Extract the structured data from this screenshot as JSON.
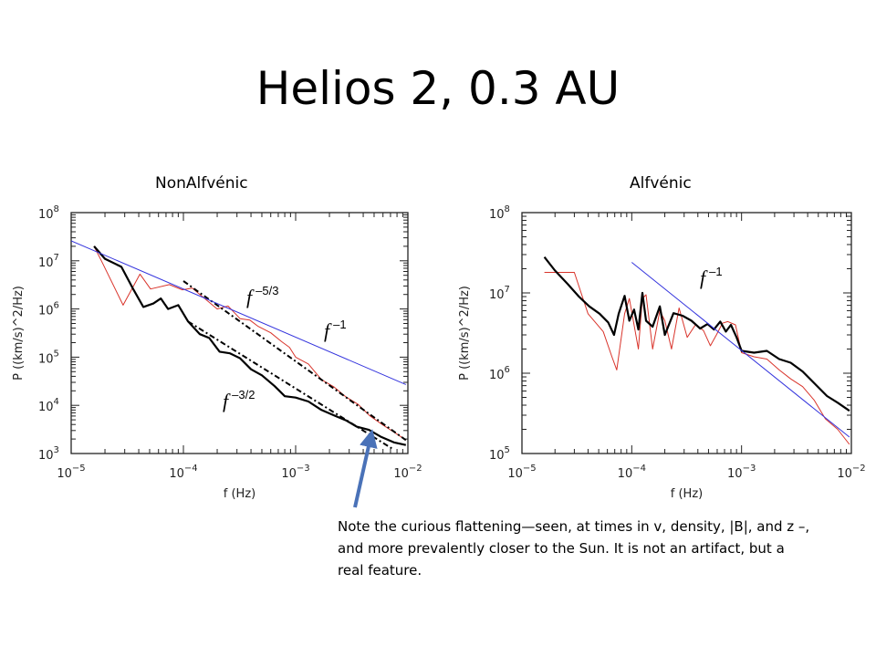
{
  "slide": {
    "title": "Helios 2, 0.3 AU",
    "note": "Note the curious flattening—seen, at times in v, density, |B|, and z –, and more prevalently closer to the Sun.  It is not an artifact, but a real feature.",
    "arrow_color": "#4a72b8"
  },
  "chart_data": [
    {
      "type": "line",
      "title": "NonAlfvénic",
      "xlabel": "f (Hz)",
      "ylabel": "P ((km/s)^2/Hz)",
      "xscale": "log",
      "yscale": "log",
      "xlim": [
        1e-05,
        0.01
      ],
      "ylim": [
        1000.0,
        100000000.0
      ],
      "xticks": [
        {
          "v": 1e-05,
          "base": "10",
          "exp": "−5"
        },
        {
          "v": 0.0001,
          "base": "10",
          "exp": "−4"
        },
        {
          "v": 0.001,
          "base": "10",
          "exp": "−3"
        },
        {
          "v": 0.01,
          "base": "10",
          "exp": "−2"
        }
      ],
      "yticks": [
        {
          "v": 1000.0,
          "base": "10",
          "exp": "3"
        },
        {
          "v": 10000.0,
          "base": "10",
          "exp": "4"
        },
        {
          "v": 100000.0,
          "base": "10",
          "exp": "5"
        },
        {
          "v": 1000000.0,
          "base": "10",
          "exp": "6"
        },
        {
          "v": 10000000.0,
          "base": "10",
          "exp": "7"
        },
        {
          "v": 100000000.0,
          "base": "10",
          "exp": "8"
        }
      ],
      "series": [
        {
          "color": "#d9342b",
          "width": 1,
          "dash": "",
          "x": [
            1.6e-05,
            1.9e-05,
            2.9e-05,
            4.1e-05,
            5.1e-05,
            7.5e-05,
            9.8e-05,
            0.00012,
            0.00016,
            0.0002,
            0.00025,
            0.00032,
            0.00039,
            0.00046,
            0.0006,
            0.00075,
            0.00088,
            0.001,
            0.0013,
            0.0017,
            0.0022,
            0.0028,
            0.0036,
            0.0046,
            0.006,
            0.0075,
            0.0096
          ],
          "y": [
            20000000.0,
            9000000.0,
            1200000.0,
            5300000.0,
            2600000.0,
            3200000.0,
            2500000.0,
            2700000.0,
            1550000.0,
            1000000.0,
            1150000.0,
            630000.0,
            590000.0,
            440000.0,
            320000.0,
            210000.0,
            160000.0,
            100000.0,
            72000.0,
            34000.0,
            24000.0,
            15000.0,
            10500.0,
            6000.0,
            3900.0,
            2800.0,
            1900.0
          ]
        },
        {
          "color": "#000000",
          "width": 2.2,
          "dash": "",
          "x": [
            1.6e-05,
            2e-05,
            2.8e-05,
            3.6e-05,
            4.4e-05,
            5.4e-05,
            6.3e-05,
            7.3e-05,
            9e-05,
            0.00011,
            0.00014,
            0.00017,
            0.00021,
            0.00026,
            0.00032,
            0.0004,
            0.0005,
            0.00065,
            0.0008,
            0.001,
            0.0013,
            0.0017,
            0.0022,
            0.0028,
            0.0035,
            0.0045,
            0.0058,
            0.0075,
            0.0096
          ],
          "y": [
            20000000.0,
            11000000.0,
            7500000.0,
            2500000.0,
            1100000.0,
            1300000.0,
            1650000.0,
            1000000.0,
            1200000.0,
            550000.0,
            300000.0,
            250000.0,
            130000.0,
            120000.0,
            95000.0,
            56000.0,
            42000.0,
            25000.0,
            15500.0,
            14500.0,
            12000.0,
            8000.0,
            6200.0,
            4900.0,
            3600.0,
            3100.0,
            2200.0,
            1700.0,
            1500.0
          ]
        },
        {
          "color": "#000000",
          "width": 2,
          "dash": "6 3 2 3",
          "x": [
            0.0001,
            0.0096
          ],
          "y": [
            3800000.0,
            1900.0
          ]
        },
        {
          "color": "#000000",
          "width": 2,
          "dash": "6 3 2 3",
          "x": [
            0.00011,
            0.0075
          ],
          "y": [
            550000.0,
            1200.0
          ]
        },
        {
          "color": "#3333dd",
          "width": 1,
          "dash": "",
          "x": [
            1e-05,
            0.0096
          ],
          "y": [
            26000000.0,
            27000.0
          ]
        }
      ],
      "annotations": [
        {
          "base": "f",
          "exp": "–5/3"
        },
        {
          "base": "f",
          "exp": "–1"
        },
        {
          "base": "f",
          "exp": "–3/2"
        }
      ]
    },
    {
      "type": "line",
      "title": "Alfvénic",
      "xlabel": "f (Hz)",
      "ylabel": "P ((km/s)^2/Hz)",
      "xscale": "log",
      "yscale": "log",
      "xlim": [
        1e-05,
        0.01
      ],
      "ylim": [
        100000.0,
        100000000.0
      ],
      "xticks": [
        {
          "v": 1e-05,
          "base": "10",
          "exp": "−5"
        },
        {
          "v": 0.0001,
          "base": "10",
          "exp": "−4"
        },
        {
          "v": 0.001,
          "base": "10",
          "exp": "−3"
        },
        {
          "v": 0.01,
          "base": "10",
          "exp": "−2"
        }
      ],
      "yticks": [
        {
          "v": 100000.0,
          "base": "10",
          "exp": "5"
        },
        {
          "v": 1000000.0,
          "base": "10",
          "exp": "6"
        },
        {
          "v": 10000000.0,
          "base": "10",
          "exp": "7"
        },
        {
          "v": 100000000.0,
          "base": "10",
          "exp": "8"
        }
      ],
      "series": [
        {
          "color": "#d9342b",
          "width": 1,
          "dash": "",
          "x": [
            1.6e-05,
            3e-05,
            4e-05,
            5.5e-05,
            6.6e-05,
            7.3e-05,
            8.6e-05,
            9.5e-05,
            0.000115,
            0.000125,
            0.000135,
            0.000155,
            0.00018,
            0.0002,
            0.00023,
            0.00027,
            0.00032,
            0.00038,
            0.00045,
            0.00052,
            0.00059,
            0.00067,
            0.00075,
            0.00088,
            0.001,
            0.0013,
            0.0017,
            0.0022,
            0.0028,
            0.0036,
            0.0046,
            0.0058,
            0.0075,
            0.0096
          ],
          "y": [
            18000000.0,
            18000000.0,
            5500000.0,
            3300000.0,
            1600000.0,
            1100000.0,
            5500000.0,
            8500000.0,
            2000000.0,
            8500000.0,
            9500000.0,
            2000000.0,
            6000000.0,
            4500000.0,
            2000000.0,
            6500000.0,
            2800000.0,
            4000000.0,
            3400000.0,
            2200000.0,
            3000000.0,
            4200000.0,
            4400000.0,
            4000000.0,
            1800000.0,
            1600000.0,
            1500000.0,
            1100000.0,
            850000.0,
            680000.0,
            460000.0,
            270000.0,
            200000.0,
            130000.0
          ]
        },
        {
          "color": "#000000",
          "width": 2.2,
          "dash": "",
          "x": [
            1.6e-05,
            2e-05,
            2.6e-05,
            3.3e-05,
            4.1e-05,
            5.1e-05,
            6.1e-05,
            6.9e-05,
            7.6e-05,
            8.6e-05,
            9.5e-05,
            0.000105,
            0.000115,
            0.000125,
            0.000135,
            0.000155,
            0.00018,
            0.0002,
            0.00024,
            0.00029,
            0.00035,
            0.00042,
            0.00049,
            0.00056,
            0.00064,
            0.00072,
            0.0008,
            0.0009,
            0.001,
            0.0013,
            0.0017,
            0.0022,
            0.0028,
            0.0036,
            0.0046,
            0.006,
            0.0075,
            0.0096
          ],
          "y": [
            28000000.0,
            19000000.0,
            13000000.0,
            9000000.0,
            6800000.0,
            5500000.0,
            4300000.0,
            3000000.0,
            5500000.0,
            9200000.0,
            4500000.0,
            6200000.0,
            3500000.0,
            10000000.0,
            4500000.0,
            3800000.0,
            6800000.0,
            3000000.0,
            5600000.0,
            5200000.0,
            4500000.0,
            3600000.0,
            4100000.0,
            3500000.0,
            4400000.0,
            3300000.0,
            4000000.0,
            2800000.0,
            1900000.0,
            1800000.0,
            1900000.0,
            1500000.0,
            1350000.0,
            1050000.0,
            750000.0,
            520000.0,
            430000.0,
            340000.0
          ]
        },
        {
          "color": "#3333dd",
          "width": 1,
          "dash": "",
          "x": [
            0.0001,
            0.0096
          ],
          "y": [
            24000000.0,
            160000.0
          ]
        }
      ],
      "annotations": [
        {
          "base": "f",
          "exp": "–1"
        }
      ]
    }
  ]
}
